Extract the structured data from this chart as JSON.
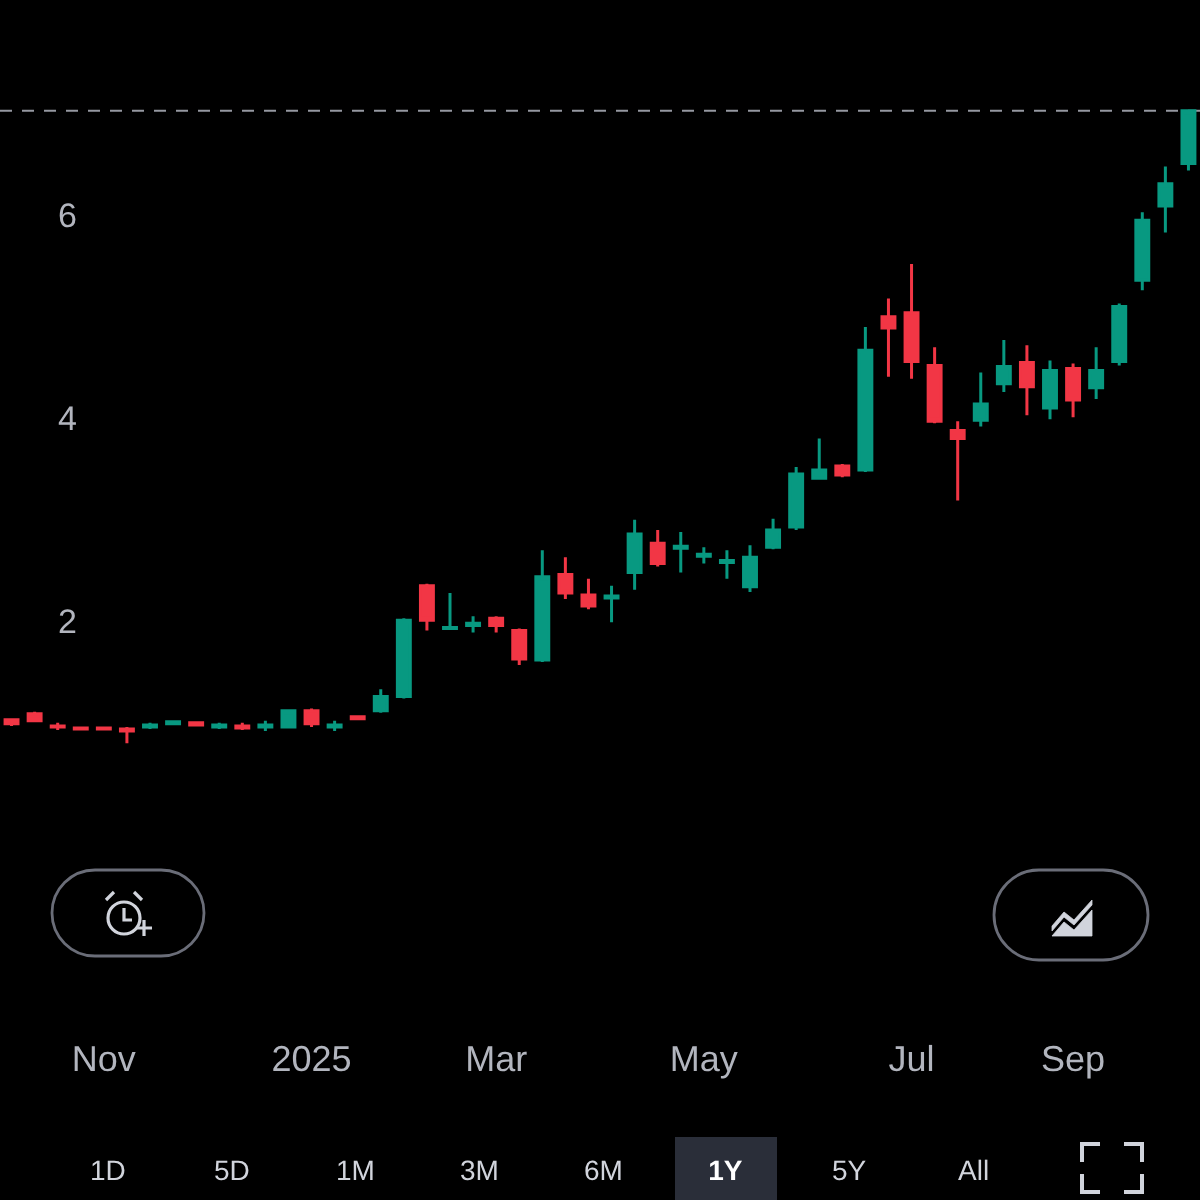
{
  "chart_data": {
    "type": "candlestick",
    "categories": [
      null,
      null,
      null,
      null,
      "Nov",
      null,
      null,
      null,
      null,
      null,
      null,
      null,
      null,
      "2025",
      null,
      null,
      null,
      null,
      null,
      null,
      null,
      "Mar",
      null,
      null,
      null,
      null,
      null,
      null,
      null,
      null,
      "May",
      null,
      null,
      null,
      null,
      null,
      null,
      null,
      null,
      "Jul",
      null,
      null,
      null,
      null,
      null,
      null,
      "Sep",
      null,
      null,
      null,
      null,
      null
    ],
    "ohlc": [
      [
        1.03,
        1.04,
        0.97,
        0.99
      ],
      [
        1.09,
        1.11,
        1.01,
        1.02
      ],
      [
        0.97,
        1.0,
        0.93,
        0.96
      ],
      [
        0.95,
        0.96,
        0.93,
        0.94
      ],
      [
        0.95,
        0.96,
        0.93,
        0.94
      ],
      [
        0.94,
        0.96,
        0.8,
        0.92
      ],
      [
        0.96,
        1.0,
        0.94,
        0.98
      ],
      [
        0.99,
        1.02,
        0.98,
        1.01
      ],
      [
        1.0,
        1.01,
        0.97,
        0.98
      ],
      [
        0.96,
        1.0,
        0.94,
        0.98
      ],
      [
        0.97,
        1.0,
        0.93,
        0.95
      ],
      [
        0.96,
        1.02,
        0.92,
        0.98
      ],
      [
        0.96,
        1.13,
        0.95,
        1.12
      ],
      [
        1.12,
        1.14,
        0.96,
        0.99
      ],
      [
        0.96,
        1.02,
        0.92,
        0.98
      ],
      [
        1.06,
        1.07,
        1.03,
        1.04
      ],
      [
        1.12,
        1.33,
        1.1,
        1.26
      ],
      [
        1.26,
        2.03,
        1.24,
        2.01
      ],
      [
        2.35,
        2.37,
        1.91,
        2.01
      ],
      [
        1.93,
        2.28,
        1.92,
        1.94
      ],
      [
        1.96,
        2.05,
        1.89,
        1.98
      ],
      [
        2.03,
        2.05,
        1.89,
        1.96
      ],
      [
        1.91,
        1.93,
        1.57,
        1.63
      ],
      [
        1.62,
        2.7,
        1.6,
        2.44
      ],
      [
        2.46,
        2.63,
        2.22,
        2.28
      ],
      [
        2.26,
        2.42,
        2.12,
        2.15
      ],
      [
        2.23,
        2.35,
        1.99,
        2.25
      ],
      [
        2.48,
        3.0,
        2.31,
        2.86
      ],
      [
        2.77,
        2.9,
        2.54,
        2.57
      ],
      [
        2.72,
        2.88,
        2.48,
        2.74
      ],
      [
        2.64,
        2.73,
        2.57,
        2.66
      ],
      [
        2.58,
        2.7,
        2.42,
        2.6
      ],
      [
        2.34,
        2.75,
        2.29,
        2.63
      ],
      [
        2.73,
        3.01,
        2.71,
        2.9
      ],
      [
        2.93,
        3.52,
        2.9,
        3.45
      ],
      [
        3.41,
        3.8,
        3.4,
        3.49
      ],
      [
        3.53,
        3.55,
        3.42,
        3.44
      ],
      [
        3.49,
        4.9,
        3.47,
        4.67
      ],
      [
        5.0,
        5.18,
        4.41,
        4.89
      ],
      [
        5.04,
        5.52,
        4.39,
        4.56
      ],
      [
        4.52,
        4.7,
        3.95,
        3.97
      ],
      [
        3.88,
        3.97,
        3.19,
        3.8
      ],
      [
        3.98,
        4.45,
        3.92,
        4.14
      ],
      [
        4.34,
        4.77,
        4.26,
        4.51
      ],
      [
        4.55,
        4.72,
        4.03,
        4.31
      ],
      [
        4.1,
        4.57,
        3.99,
        4.47
      ],
      [
        4.49,
        4.54,
        4.01,
        4.18
      ],
      [
        4.3,
        4.7,
        4.19,
        4.47
      ],
      [
        4.56,
        5.13,
        4.52,
        5.1
      ],
      [
        5.36,
        6.03,
        5.26,
        5.95
      ],
      [
        6.09,
        6.48,
        5.83,
        6.31
      ],
      [
        6.51,
        7.03,
        6.44,
        7.03
      ]
    ],
    "colors": [
      "#f23645",
      "#f23645",
      "#f23645",
      "#f23645",
      "#f23645",
      "#f23645",
      "#089981",
      "#089981",
      "#f23645",
      "#089981",
      "#f23645",
      "#089981",
      "#089981",
      "#f23645",
      "#089981",
      "#f23645",
      "#089981",
      "#089981",
      "#f23645",
      "#089981",
      "#089981",
      "#f23645",
      "#f23645",
      "#089981",
      "#f23645",
      "#f23645",
      "#089981",
      "#089981",
      "#f23645",
      "#089981",
      "#089981",
      "#089981",
      "#089981",
      "#089981",
      "#089981",
      "#089981",
      "#f23645",
      "#089981",
      "#f23645",
      "#f23645",
      "#f23645",
      "#f23645",
      "#089981",
      "#089981",
      "#f23645",
      "#089981",
      "#f23645",
      "#089981",
      "#089981",
      "#089981",
      "#089981",
      "#089981"
    ],
    "ylim": [
      -3.7,
      8.12
    ],
    "yticks": [
      2,
      4,
      6
    ],
    "ref_lines": [
      {
        "axis": "y",
        "value": 7.03,
        "color": "#9598a1",
        "line_style": "dashed"
      }
    ],
    "annotations": [
      "1D",
      "5D",
      "1M",
      "3M",
      "6M",
      "1Y",
      "5Y",
      "All"
    ]
  }
}
